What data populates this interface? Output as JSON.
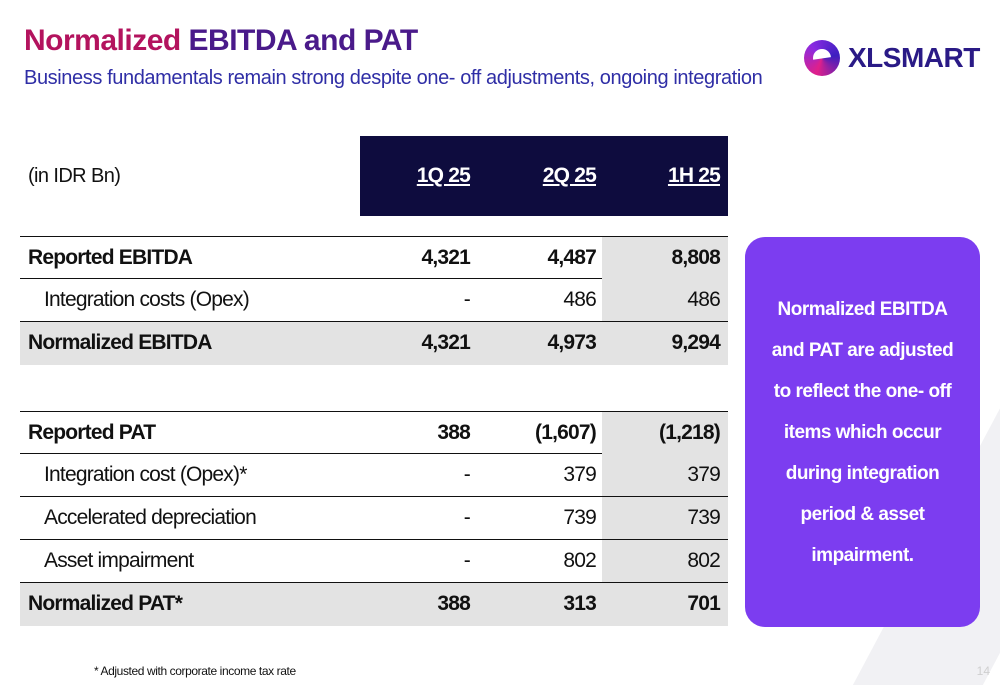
{
  "header": {
    "title_part1": "Normalized ",
    "title_part2": "EBITDA and PAT",
    "subtitle": "Business fundamentals remain strong despite one- off adjustments, ongoing integration",
    "logo_text": "XLSMART"
  },
  "table": {
    "unit_label": "(in IDR Bn)",
    "columns": [
      "1Q 25",
      "2Q 25",
      "1H 25"
    ],
    "ebitda_rows": [
      {
        "label": "Reported EBITDA",
        "values": [
          "4,321",
          "4,487",
          "8,808"
        ]
      },
      {
        "label": "Integration costs (Opex)",
        "values": [
          "-",
          "486",
          "486"
        ]
      },
      {
        "label": "Normalized EBITDA",
        "values": [
          "4,321",
          "4,973",
          "9,294"
        ]
      }
    ],
    "pat_rows": [
      {
        "label": "Reported PAT",
        "values": [
          "388",
          "(1,607)",
          "(1,218)"
        ]
      },
      {
        "label": "Integration cost  (Opex)*",
        "values": [
          "-",
          "379",
          "379"
        ]
      },
      {
        "label": "Accelerated depreciation",
        "values": [
          "-",
          "739",
          "739"
        ]
      },
      {
        "label": "Asset impairment",
        "values": [
          "-",
          "802",
          "802"
        ]
      },
      {
        "label": "Normalized PAT*",
        "values": [
          "388",
          "313",
          "701"
        ]
      }
    ]
  },
  "callout": {
    "text": "Normalized EBITDA and PAT are adjusted to reflect the one- off items which occur during integration period & asset impairment."
  },
  "footnote": "* Adjusted with corporate income tax rate",
  "page_number": "14",
  "colors": {
    "title_magenta": "#b3135e",
    "title_purple": "#4a1a8a",
    "subtitle_blue": "#2f2ea6",
    "header_navy": "#0e0c3e",
    "callout_purple": "#7c3df0",
    "row_gray": "#e3e3e3"
  }
}
